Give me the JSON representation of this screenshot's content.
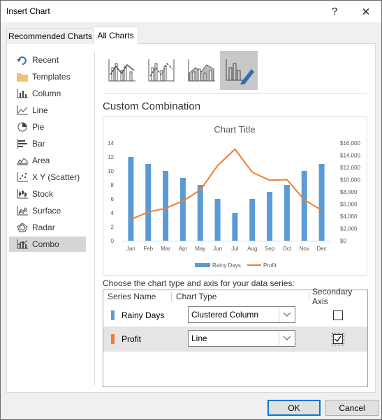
{
  "window": {
    "title": "Insert Chart",
    "help": "?",
    "close": "✕"
  },
  "tabs": [
    {
      "label": "Recommended Charts"
    },
    {
      "label": "All Charts"
    }
  ],
  "sidebar": {
    "items": [
      {
        "label": "Recent",
        "icon": "recent-icon"
      },
      {
        "label": "Templates",
        "icon": "folder-icon"
      },
      {
        "label": "Column",
        "icon": "column-chart-icon"
      },
      {
        "label": "Line",
        "icon": "line-chart-icon"
      },
      {
        "label": "Pie",
        "icon": "pie-chart-icon"
      },
      {
        "label": "Bar",
        "icon": "bar-chart-icon"
      },
      {
        "label": "Area",
        "icon": "area-chart-icon"
      },
      {
        "label": "X Y (Scatter)",
        "icon": "scatter-chart-icon"
      },
      {
        "label": "Stock",
        "icon": "stock-chart-icon"
      },
      {
        "label": "Surface",
        "icon": "surface-chart-icon"
      },
      {
        "label": "Radar",
        "icon": "radar-chart-icon"
      },
      {
        "label": "Combo",
        "icon": "combo-chart-icon",
        "selected": true
      }
    ]
  },
  "main": {
    "section_title": "Custom Combination",
    "series_prompt": "Choose the chart type and axis for your data series:",
    "grid_headers": {
      "series_name": "Series Name",
      "chart_type": "Chart Type",
      "secondary_axis": "Secondary Axis"
    },
    "series_rows": [
      {
        "name": "Rainy Days",
        "color": "#5b9bd5",
        "chart_type": "Clustered Column",
        "secondary": false
      },
      {
        "name": "Profit",
        "color": "#ed7d31",
        "chart_type": "Line",
        "secondary": true
      }
    ]
  },
  "buttons": {
    "ok": "OK",
    "cancel": "Cancel"
  },
  "colors": {
    "rain": "#5b9bd5",
    "profit": "#ed7d31",
    "accent": "#0078d7"
  },
  "chart_data": {
    "type": "bar",
    "title": "Chart Title",
    "categories": [
      "Jan",
      "Feb",
      "Mar",
      "Apr",
      "May",
      "Jun",
      "Jul",
      "Aug",
      "Sep",
      "Oct",
      "Nov",
      "Dec"
    ],
    "series": [
      {
        "name": "Rainy Days",
        "kind": "column",
        "axis": "primary",
        "values": [
          12,
          11,
          10,
          9,
          8,
          6,
          4,
          6,
          7,
          8,
          10,
          11
        ]
      },
      {
        "name": "Profit",
        "kind": "line",
        "axis": "secondary",
        "values": [
          3500,
          4700,
          5300,
          6500,
          8300,
          12300,
          15000,
          11200,
          9900,
          10000,
          6700,
          5000
        ]
      }
    ],
    "y_ticks": [
      "0",
      "2",
      "4",
      "6",
      "8",
      "10",
      "12",
      "14"
    ],
    "y2_ticks": [
      "$0",
      "$2,000",
      "$4,000",
      "$6,000",
      "$8,000",
      "$10,000",
      "$12,000",
      "$14,000",
      "$16,000"
    ],
    "ylim": [
      0,
      14
    ],
    "y2lim": [
      0,
      16000
    ],
    "grid": false,
    "legend": "bottom"
  }
}
